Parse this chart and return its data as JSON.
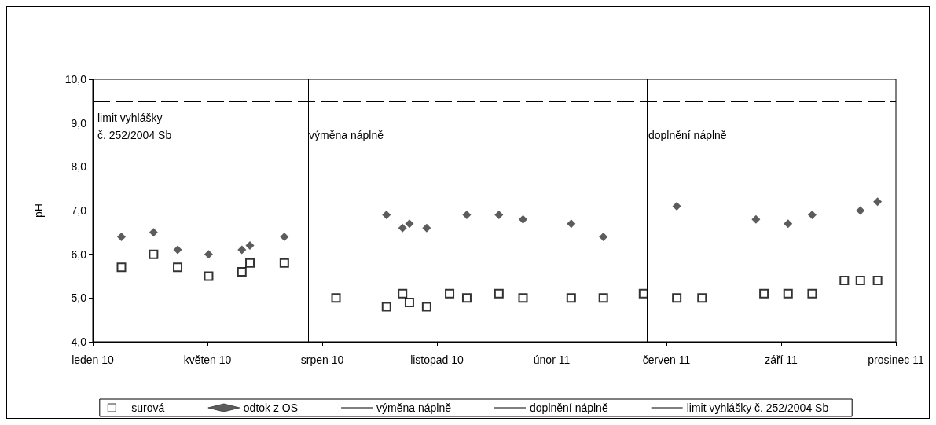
{
  "chart_data": {
    "type": "scatter",
    "ylabel": "pH",
    "xlim": [
      "2010-01-22",
      "2011-12-23"
    ],
    "xticks": [
      {
        "value": "2010-01-22",
        "label": "leden 10"
      },
      {
        "value": "2010-05-02",
        "label": "květen 10"
      },
      {
        "value": "2010-08-10",
        "label": "srpen 10"
      },
      {
        "value": "2010-11-18",
        "label": "listopad 10"
      },
      {
        "value": "2011-02-26",
        "label": "únor 11"
      },
      {
        "value": "2011-06-06",
        "label": "červen 11"
      },
      {
        "value": "2011-09-14",
        "label": "září 11"
      },
      {
        "value": "2011-12-23",
        "label": "prosinec 11"
      }
    ],
    "ylim": [
      4,
      10
    ],
    "yticks": [
      {
        "value": 4,
        "label": "4,0"
      },
      {
        "value": 5,
        "label": "5,0"
      },
      {
        "value": 6,
        "label": "6,0"
      },
      {
        "value": 7,
        "label": "7,0"
      },
      {
        "value": 8,
        "label": "8,0"
      },
      {
        "value": 9,
        "label": "9,0"
      },
      {
        "value": 10,
        "label": "10,0"
      }
    ],
    "grid": false,
    "legend": "bottom",
    "series": [
      {
        "name": "surová",
        "color": "#000000",
        "marker": "square",
        "x": [
          "2010-02-16",
          "2010-03-16",
          "2010-04-06",
          "2010-05-03",
          "2010-06-01",
          "2010-06-08",
          "2010-07-08",
          "2010-08-22",
          "2010-10-05",
          "2010-10-19",
          "2010-10-25",
          "2010-11-09",
          "2010-11-29",
          "2010-12-14",
          "2011-01-11",
          "2011-02-01",
          "2011-03-15",
          "2011-04-12",
          "2011-05-17",
          "2011-06-15",
          "2011-07-07",
          "2011-08-30",
          "2011-09-20",
          "2011-10-11",
          "2011-11-08",
          "2011-11-22",
          "2011-12-07"
        ],
        "values": [
          5.7,
          6.0,
          5.7,
          5.5,
          5.6,
          5.8,
          5.8,
          5.0,
          4.8,
          5.1,
          4.9,
          4.8,
          5.1,
          5.0,
          5.1,
          5.0,
          5.0,
          5.0,
          5.1,
          5.0,
          5.0,
          5.1,
          5.1,
          5.1,
          5.4,
          5.4,
          5.4
        ]
      },
      {
        "name": "odtok z OS",
        "color": "#333333",
        "marker": "diamond",
        "x": [
          "2010-02-16",
          "2010-03-16",
          "2010-04-06",
          "2010-05-03",
          "2010-06-01",
          "2010-06-08",
          "2010-07-08",
          "2010-10-05",
          "2010-10-19",
          "2010-10-25",
          "2010-11-09",
          "2010-12-14",
          "2011-01-11",
          "2011-02-01",
          "2011-03-15",
          "2011-04-12",
          "2011-06-15",
          "2011-08-23",
          "2011-09-20",
          "2011-10-11",
          "2011-11-22",
          "2011-12-07"
        ],
        "values": [
          6.4,
          6.5,
          6.1,
          6.0,
          6.1,
          6.2,
          6.4,
          6.9,
          6.6,
          6.7,
          6.6,
          6.9,
          6.9,
          6.8,
          6.7,
          6.4,
          7.1,
          6.8,
          6.7,
          6.9,
          7.0,
          7.2
        ]
      }
    ],
    "ref_lines": [
      {
        "axis": "x",
        "value": "2010-07-29",
        "label": "výměna náplně",
        "color": "#000000",
        "line_style": "solid"
      },
      {
        "axis": "x",
        "value": "2011-05-20",
        "label": "doplnění náplně",
        "color": "#000000",
        "line_style": "solid"
      },
      {
        "axis": "y",
        "value": 6.5,
        "label": "limit vyhlášky č. 252/2004 Sb",
        "color": "#000000",
        "line_style": "dashed"
      },
      {
        "axis": "y",
        "value": 9.5,
        "label": "limit vyhlášky č. 252/2004 Sb",
        "color": "#000000",
        "line_style": "dashed"
      }
    ],
    "annotations": [
      "výměna náplně",
      "doplnění náplně"
    ]
  }
}
